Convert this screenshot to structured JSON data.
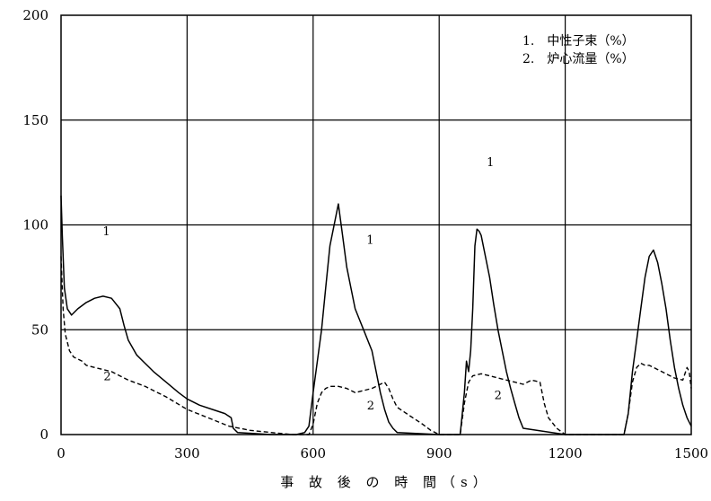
{
  "chart_data": {
    "type": "line",
    "title": "",
    "xlabel": "事 故 後 の 時 間（s）",
    "ylabel": "",
    "xlim": [
      0,
      1500
    ],
    "ylim": [
      0,
      200
    ],
    "xticks": [
      0,
      300,
      600,
      900,
      1200,
      1500
    ],
    "yticks": [
      0,
      50,
      100,
      150,
      200
    ],
    "xtick_labels": [
      "0",
      "300",
      "600",
      "900",
      "1200",
      "1500"
    ],
    "ytick_labels": [
      "0",
      "50",
      "100",
      "150",
      "200"
    ],
    "grid": true,
    "legend": {
      "placement": "top-right",
      "entries": [
        "1.　中性子束（%）",
        "2.　炉心流量（%）"
      ]
    },
    "series": [
      {
        "name": "中性子束（%）",
        "style": "solid",
        "color": "#000000",
        "label": "1",
        "x": [
          0,
          3,
          8,
          15,
          25,
          40,
          60,
          80,
          100,
          120,
          140,
          150,
          160,
          180,
          200,
          220,
          250,
          280,
          300,
          330,
          360,
          390,
          405,
          410,
          420,
          500,
          560,
          580,
          590,
          600,
          610,
          620,
          630,
          640,
          650,
          660,
          670,
          680,
          690,
          700,
          710,
          720,
          730,
          740,
          750,
          760,
          770,
          780,
          790,
          800,
          900,
          950,
          960,
          965,
          970,
          975,
          980,
          985,
          990,
          995,
          1000,
          1010,
          1020,
          1030,
          1040,
          1050,
          1060,
          1070,
          1080,
          1090,
          1100,
          1200,
          1300,
          1340,
          1350,
          1360,
          1370,
          1380,
          1390,
          1400,
          1410,
          1420,
          1430,
          1440,
          1450,
          1460,
          1470,
          1480,
          1490,
          1500
        ],
        "y": [
          114,
          95,
          70,
          60,
          57,
          60,
          63,
          65,
          66,
          65,
          60,
          52,
          45,
          38,
          34,
          30,
          25,
          20,
          17,
          14,
          12,
          10,
          8,
          3,
          1,
          0,
          0,
          1,
          4,
          20,
          35,
          50,
          70,
          90,
          100,
          110,
          95,
          80,
          70,
          60,
          55,
          50,
          45,
          40,
          30,
          20,
          12,
          6,
          3,
          1,
          0,
          0,
          20,
          35,
          30,
          40,
          60,
          90,
          98,
          97,
          95,
          85,
          75,
          62,
          50,
          40,
          30,
          22,
          15,
          8,
          3,
          0,
          0,
          0,
          10,
          30,
          45,
          60,
          75,
          85,
          88,
          82,
          72,
          60,
          45,
          32,
          22,
          14,
          8,
          4
        ]
      },
      {
        "name": "炉心流量（%）",
        "style": "dashed",
        "color": "#000000",
        "label": "2",
        "x": [
          0,
          5,
          10,
          20,
          30,
          40,
          50,
          60,
          80,
          100,
          120,
          140,
          160,
          200,
          250,
          300,
          350,
          400,
          450,
          500,
          550,
          580,
          590,
          600,
          610,
          620,
          630,
          640,
          660,
          680,
          700,
          720,
          740,
          760,
          770,
          780,
          790,
          800,
          830,
          860,
          880,
          900,
          950,
          960,
          970,
          980,
          1000,
          1020,
          1040,
          1060,
          1080,
          1100,
          1120,
          1140,
          1150,
          1160,
          1180,
          1200,
          1250,
          1300,
          1330,
          1340,
          1350,
          1360,
          1370,
          1380,
          1390,
          1400,
          1420,
          1440,
          1460,
          1480,
          1490,
          1495,
          1500
        ],
        "y": [
          85,
          60,
          48,
          40,
          37,
          36,
          35,
          33,
          32,
          31,
          30,
          28,
          26,
          23,
          18,
          12,
          8,
          4,
          2,
          1,
          0,
          0,
          0,
          5,
          15,
          20,
          22,
          23,
          23,
          22,
          20,
          21,
          22,
          24,
          25,
          22,
          17,
          13,
          9,
          5,
          2,
          0,
          0,
          15,
          25,
          28,
          29,
          28,
          27,
          26,
          25,
          24,
          26,
          25,
          15,
          8,
          3,
          0,
          0,
          0,
          0,
          0,
          10,
          25,
          32,
          34,
          33,
          33,
          31,
          29,
          27,
          26,
          32,
          30,
          22
        ]
      }
    ],
    "annotations": [
      {
        "text": "1",
        "series": 1,
        "x": 108,
        "y": 95
      },
      {
        "text": "2",
        "series": 2,
        "x": 110,
        "y": 26
      },
      {
        "text": "1",
        "series": 1,
        "x": 736,
        "y": 91
      },
      {
        "text": "2",
        "series": 2,
        "x": 737,
        "y": 12
      },
      {
        "text": "1",
        "series": 1,
        "x": 1022,
        "y": 128
      },
      {
        "text": "2",
        "series": 2,
        "x": 1040,
        "y": 17
      }
    ]
  }
}
